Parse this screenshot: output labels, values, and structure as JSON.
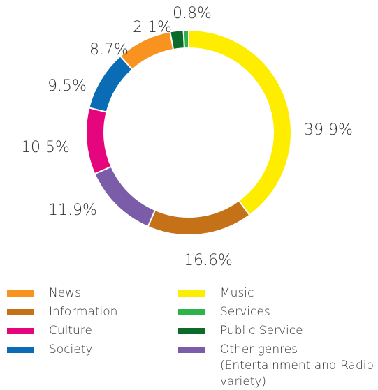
{
  "chart_data": {
    "type": "pie",
    "style": "donut",
    "start_angle_deg": 0,
    "direction": "clockwise",
    "slices": [
      {
        "name": "Music",
        "value": 39.9,
        "label": "39.9%",
        "color": "#FFED00"
      },
      {
        "name": "Information",
        "value": 16.6,
        "label": "16.6%",
        "color": "#C47117"
      },
      {
        "name": "Other genres (Entertainment and Radio variety)",
        "value": 11.9,
        "label": "11.9%",
        "color": "#7B5CA8"
      },
      {
        "name": "Culture",
        "value": 10.5,
        "label": "10.5%",
        "color": "#E5067E"
      },
      {
        "name": "Society",
        "value": 9.5,
        "label": "9.5%",
        "color": "#0A6CB4"
      },
      {
        "name": "News",
        "value": 8.7,
        "label": "8.7%",
        "color": "#F7931E"
      },
      {
        "name": "Public Service",
        "value": 2.1,
        "label": "2.1%",
        "color": "#0B6B2A"
      },
      {
        "name": "Services",
        "value": 0.8,
        "label": "0.8%",
        "color": "#2EB24A"
      }
    ],
    "legend": {
      "placement": "bottom",
      "left_column": [
        {
          "name": "News",
          "color": "#F7931E"
        },
        {
          "name": "Information",
          "color": "#C47117"
        },
        {
          "name": "Culture",
          "color": "#E5067E"
        },
        {
          "name": "Society",
          "color": "#0A6CB4"
        }
      ],
      "right_column": [
        {
          "name": "Music",
          "color": "#FFED00"
        },
        {
          "name": "Services",
          "color": "#2EB24A"
        },
        {
          "name": "Public Service",
          "color": "#0B6B2A"
        },
        {
          "name": "Other genres (Entertainment and Radio variety)",
          "color": "#7B5CA8"
        }
      ]
    }
  }
}
